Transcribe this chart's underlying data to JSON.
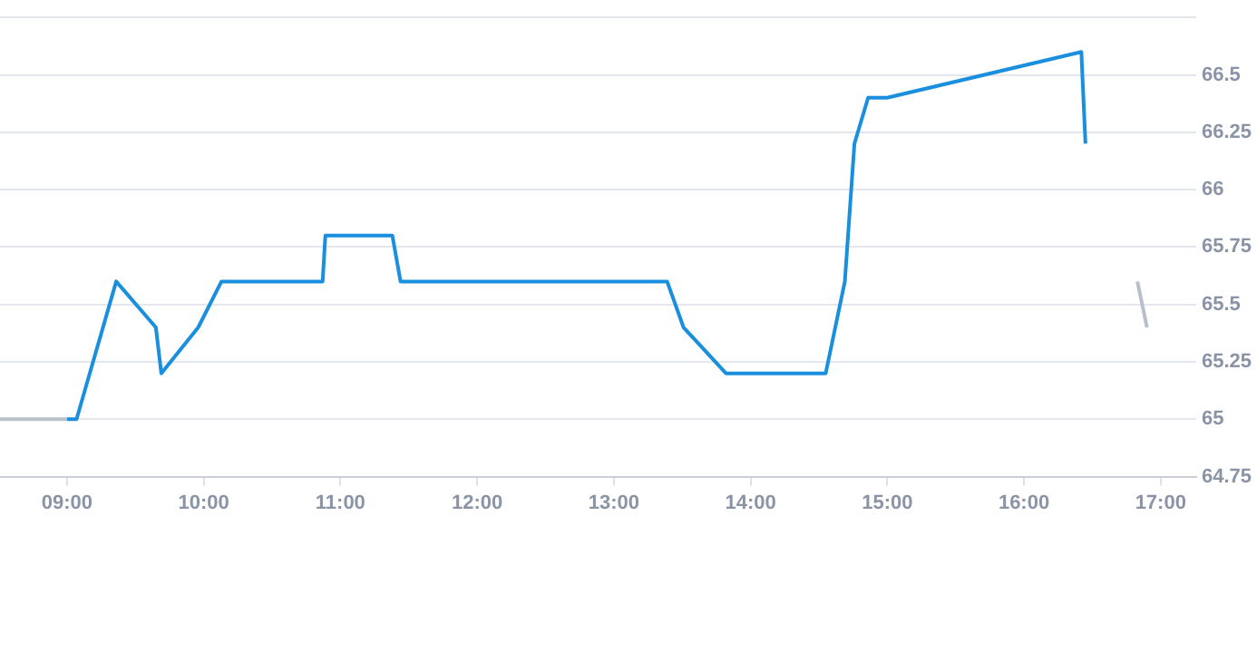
{
  "chart_data": {
    "type": "line",
    "xlim": [
      8.51,
      17.26
    ],
    "xticks": [
      {
        "value": 9,
        "label": "09:00"
      },
      {
        "value": 10,
        "label": "10:00"
      },
      {
        "value": 11,
        "label": "11:00"
      },
      {
        "value": 12,
        "label": "12:00"
      },
      {
        "value": 13,
        "label": "13:00"
      },
      {
        "value": 14,
        "label": "14:00"
      },
      {
        "value": 15,
        "label": "15:00"
      },
      {
        "value": 16,
        "label": "16:00"
      },
      {
        "value": 17,
        "label": "17:00"
      }
    ],
    "ylim": [
      64.75,
      66.75
    ],
    "yticks": [
      64.75,
      65,
      65.25,
      65.5,
      65.75,
      66,
      66.25,
      66.5,
      {
        "value": 66.75,
        "label": null
      }
    ],
    "grid": "y",
    "legend": false,
    "marker": "none",
    "line_style": "solid",
    "series": [
      {
        "color": "#b8c0cc",
        "x": [
          8.51,
          9.0,
          null,
          16.83,
          16.9
        ],
        "values": [
          65,
          65,
          null,
          65.6,
          65.4
        ]
      },
      {
        "color": "#1a8fdd",
        "x": [
          9.0,
          9.07,
          9.36,
          9.65,
          9.69,
          9.96,
          10.13,
          10.87,
          10.89,
          11.38,
          11.44,
          13.39,
          13.51,
          13.82,
          14.55,
          14.69,
          14.76,
          14.86,
          15.0,
          16.42,
          16.45
        ],
        "values": [
          65,
          65,
          65.6,
          65.4,
          65.2,
          65.4,
          65.6,
          65.6,
          65.8,
          65.8,
          65.6,
          65.6,
          65.4,
          65.2,
          65.2,
          65.6,
          66.2,
          66.4,
          66.4,
          66.6,
          66.2
        ]
      }
    ]
  }
}
